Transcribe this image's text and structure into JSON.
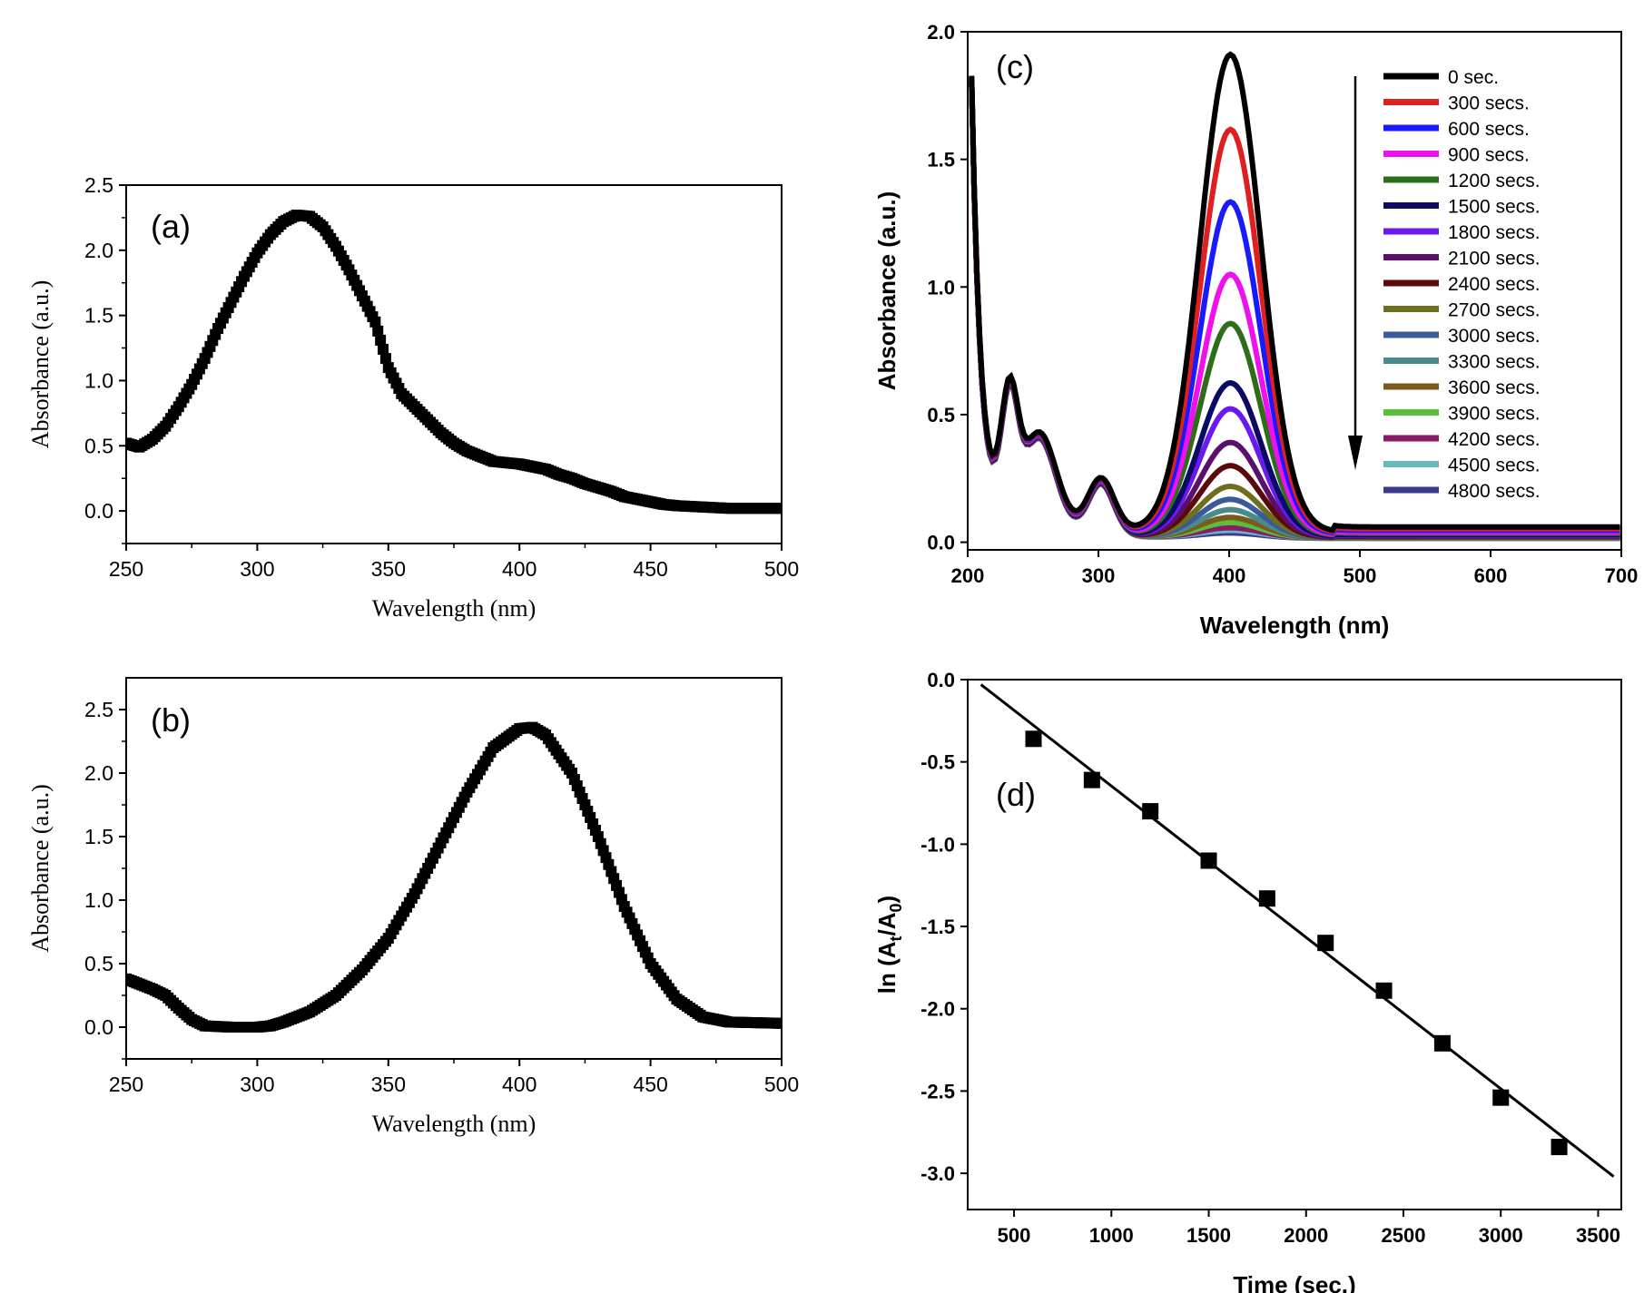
{
  "chart_data": [
    {
      "panel": "(a)",
      "type": "scatter",
      "xlabel": "Wavelength (nm)",
      "ylabel": "Absorbance (a.u.)",
      "xlim": [
        250,
        500
      ],
      "ylim": [
        -0.25,
        2.5
      ],
      "xticks": [
        250,
        300,
        350,
        400,
        450,
        500
      ],
      "yticks": [
        0.0,
        0.5,
        1.0,
        1.5,
        2.0,
        2.5
      ],
      "x": [
        250,
        255,
        260,
        265,
        270,
        275,
        280,
        285,
        290,
        295,
        300,
        305,
        310,
        315,
        320,
        325,
        330,
        335,
        340,
        345,
        350,
        355,
        360,
        365,
        370,
        375,
        380,
        385,
        390,
        395,
        400,
        405,
        410,
        415,
        420,
        425,
        430,
        435,
        440,
        445,
        450,
        455,
        460,
        470,
        480,
        490,
        500
      ],
      "y": [
        0.52,
        0.49,
        0.55,
        0.65,
        0.8,
        0.97,
        1.17,
        1.4,
        1.6,
        1.8,
        1.98,
        2.12,
        2.22,
        2.27,
        2.26,
        2.18,
        2.03,
        1.85,
        1.65,
        1.45,
        1.1,
        0.9,
        0.8,
        0.7,
        0.6,
        0.52,
        0.46,
        0.42,
        0.38,
        0.37,
        0.36,
        0.34,
        0.32,
        0.28,
        0.25,
        0.21,
        0.18,
        0.15,
        0.11,
        0.09,
        0.07,
        0.05,
        0.04,
        0.03,
        0.02,
        0.02,
        0.02
      ],
      "color": "#000000"
    },
    {
      "panel": "(b)",
      "type": "scatter",
      "xlabel": "Wavelength (nm)",
      "ylabel": "Absorbance (a.u.)",
      "xlim": [
        250,
        500
      ],
      "ylim": [
        -0.25,
        2.75
      ],
      "xticks": [
        250,
        300,
        350,
        400,
        450,
        500
      ],
      "yticks": [
        0.0,
        0.5,
        1.0,
        1.5,
        2.0,
        2.5
      ],
      "x": [
        250,
        260,
        265,
        270,
        275,
        280,
        290,
        300,
        305,
        310,
        320,
        330,
        340,
        350,
        360,
        370,
        380,
        390,
        400,
        405,
        410,
        420,
        430,
        440,
        450,
        460,
        470,
        480,
        500
      ],
      "y": [
        0.38,
        0.3,
        0.25,
        0.15,
        0.06,
        0.01,
        0.0,
        0.0,
        0.01,
        0.04,
        0.12,
        0.25,
        0.45,
        0.7,
        1.05,
        1.45,
        1.85,
        2.2,
        2.35,
        2.36,
        2.3,
        2.0,
        1.5,
        0.95,
        0.5,
        0.22,
        0.08,
        0.04,
        0.03
      ],
      "color": "#000000"
    },
    {
      "panel": "(c)",
      "type": "line",
      "xlabel": "Wavelength (nm)",
      "ylabel": "Absorbance (a.u.)",
      "xlim": [
        200,
        700
      ],
      "ylim": [
        -0.03,
        2.0
      ],
      "xticks": [
        200,
        300,
        400,
        500,
        600,
        700
      ],
      "yticks": [
        0.0,
        0.5,
        1.0,
        1.5,
        2.0
      ],
      "legend_position": "top-right",
      "series": [
        {
          "name": "0 sec.",
          "color": "#000000",
          "peak_at_400nm": 1.87
        },
        {
          "name": "300 secs.",
          "color": "#e02020",
          "peak_at_400nm": 1.58
        },
        {
          "name": "600 secs.",
          "color": "#1a1aff",
          "peak_at_400nm": 1.3
        },
        {
          "name": "900 secs.",
          "color": "#ee11ee",
          "peak_at_400nm": 1.02
        },
        {
          "name": "1200 secs.",
          "color": "#2e6e1a",
          "peak_at_400nm": 0.83
        },
        {
          "name": "1500 secs.",
          "color": "#0b0b66",
          "peak_at_400nm": 0.6
        },
        {
          "name": "1800 secs.",
          "color": "#6a1aee",
          "peak_at_400nm": 0.5
        },
        {
          "name": "2100 secs.",
          "color": "#5a0f6a",
          "peak_at_400nm": 0.37
        },
        {
          "name": "2400 secs.",
          "color": "#5a0a0a",
          "peak_at_400nm": 0.28
        },
        {
          "name": "2700 secs.",
          "color": "#6e6e1e",
          "peak_at_400nm": 0.2
        },
        {
          "name": "3000 secs.",
          "color": "#3a5a9a",
          "peak_at_400nm": 0.15
        },
        {
          "name": "3300 secs.",
          "color": "#4a8a8a",
          "peak_at_400nm": 0.11
        },
        {
          "name": "3600 secs.",
          "color": "#7a5a1e",
          "peak_at_400nm": 0.08
        },
        {
          "name": "3900 secs.",
          "color": "#5abf3a",
          "peak_at_400nm": 0.06
        },
        {
          "name": "4200 secs.",
          "color": "#8a1a6a",
          "peak_at_400nm": 0.04
        },
        {
          "name": "4500 secs.",
          "color": "#6ab8bf",
          "peak_at_400nm": 0.03
        },
        {
          "name": "4800 secs.",
          "color": "#3a3a8a",
          "peak_at_400nm": 0.02
        }
      ]
    },
    {
      "panel": "(d)",
      "type": "scatter",
      "xlabel": "Time (sec.)",
      "ylabel_main": "ln (A",
      "ylabel_sub1": "t",
      "ylabel_mid": "/A",
      "ylabel_sub2": "0",
      "ylabel_end": ")",
      "xlim": [
        262,
        3619
      ],
      "ylim": [
        -3.22,
        0.0
      ],
      "xticks": [
        500,
        1000,
        1500,
        2000,
        2500,
        3000,
        3500
      ],
      "yticks": [
        0.0,
        -0.5,
        -1.0,
        -1.5,
        -2.0,
        -2.5,
        -3.0
      ],
      "x": [
        600,
        900,
        1200,
        1500,
        1800,
        2100,
        2400,
        2700,
        3000,
        3300
      ],
      "y": [
        -0.36,
        -0.61,
        -0.8,
        -1.1,
        -1.33,
        -1.6,
        -1.89,
        -2.21,
        -2.54,
        -2.84
      ],
      "fit_line": {
        "x": [
          330,
          3580
        ],
        "y": [
          -0.03,
          -3.02
        ]
      },
      "color": "#000000"
    }
  ]
}
